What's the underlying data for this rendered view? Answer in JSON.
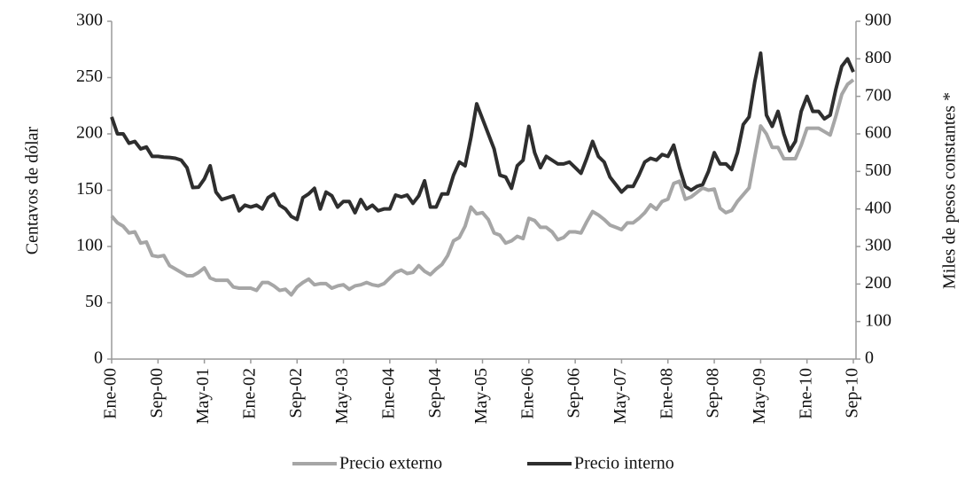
{
  "chart_data": {
    "type": "line",
    "y_label": "Centavos de dólar",
    "y2_label": "Miles de pesos constantes *",
    "categories": [
      "Ene-00",
      null,
      null,
      null,
      null,
      null,
      null,
      null,
      "Sep-00",
      null,
      null,
      null,
      null,
      null,
      null,
      null,
      "May-01",
      null,
      null,
      null,
      null,
      null,
      null,
      null,
      "Ene-02",
      null,
      null,
      null,
      null,
      null,
      null,
      null,
      "Sep-02",
      null,
      null,
      null,
      null,
      null,
      null,
      null,
      "May-03",
      null,
      null,
      null,
      null,
      null,
      null,
      null,
      "Ene-04",
      null,
      null,
      null,
      null,
      null,
      null,
      null,
      "Sep-04",
      null,
      null,
      null,
      null,
      null,
      null,
      null,
      "May-05",
      null,
      null,
      null,
      null,
      null,
      null,
      null,
      "Ene-06",
      null,
      null,
      null,
      null,
      null,
      null,
      null,
      "Sep-06",
      null,
      null,
      null,
      null,
      null,
      null,
      null,
      "May-07",
      null,
      null,
      null,
      null,
      null,
      null,
      null,
      "Ene-08",
      null,
      null,
      null,
      null,
      null,
      null,
      null,
      "Sep-08",
      null,
      null,
      null,
      null,
      null,
      null,
      null,
      "May-09",
      null,
      null,
      null,
      null,
      null,
      null,
      null,
      "Ene-10",
      null,
      null,
      null,
      null,
      null,
      null,
      null,
      "Sep-10"
    ],
    "series": [
      {
        "name": "Precio externo",
        "color": "#a6a6a6",
        "axis": "y",
        "values": [
          127,
          121,
          118,
          112,
          113,
          103,
          104,
          92,
          91,
          92,
          83,
          80,
          77,
          74,
          74,
          77,
          81,
          72,
          70,
          70,
          70,
          64,
          63,
          63,
          63,
          61,
          68,
          68,
          65,
          61,
          62,
          57,
          64,
          68,
          71,
          66,
          67,
          67,
          63,
          65,
          66,
          62,
          65,
          66,
          68,
          66,
          65,
          67,
          72,
          77,
          79,
          76,
          77,
          83,
          78,
          75,
          80,
          84,
          92,
          105,
          108,
          118,
          135,
          129,
          130,
          124,
          112,
          110,
          103,
          105,
          109,
          107,
          125,
          123,
          117,
          117,
          113,
          106,
          108,
          113,
          113,
          112,
          122,
          131,
          128,
          124,
          119,
          117,
          115,
          121,
          121,
          125,
          130,
          137,
          133,
          140,
          142,
          156,
          158,
          142,
          144,
          148,
          152,
          150,
          151,
          134,
          130,
          132,
          140,
          146,
          152,
          180,
          207,
          200,
          188,
          188,
          178,
          178,
          178,
          190,
          205,
          205,
          205,
          202,
          199,
          216,
          235,
          244,
          248
        ]
      },
      {
        "name": "Precio interno",
        "color": "#2e2e2e",
        "axis": "y2",
        "values": [
          645,
          600,
          600,
          575,
          580,
          560,
          565,
          540,
          540,
          538,
          537,
          535,
          530,
          510,
          457,
          458,
          480,
          515,
          445,
          425,
          430,
          435,
          395,
          410,
          405,
          410,
          400,
          430,
          440,
          410,
          400,
          380,
          372,
          430,
          440,
          455,
          400,
          445,
          435,
          405,
          420,
          420,
          390,
          425,
          400,
          410,
          395,
          400,
          400,
          437,
          432,
          437,
          415,
          435,
          475,
          405,
          405,
          440,
          440,
          490,
          525,
          515,
          590,
          680,
          640,
          600,
          560,
          490,
          485,
          455,
          515,
          530,
          620,
          550,
          510,
          540,
          530,
          520,
          520,
          525,
          510,
          495,
          535,
          580,
          540,
          525,
          485,
          465,
          445,
          460,
          460,
          490,
          525,
          535,
          530,
          545,
          540,
          570,
          510,
          460,
          450,
          460,
          465,
          500,
          550,
          520,
          520,
          505,
          550,
          625,
          645,
          740,
          815,
          650,
          620,
          660,
          600,
          555,
          580,
          660,
          700,
          660,
          660,
          640,
          650,
          720,
          780,
          800,
          765
        ]
      }
    ],
    "ylim": [
      0,
      300
    ],
    "yticks": [
      0,
      50,
      100,
      150,
      200,
      250,
      300
    ],
    "y2lim": [
      0,
      900
    ],
    "y2ticks": [
      0,
      100,
      200,
      300,
      400,
      500,
      600,
      700,
      800,
      900
    ],
    "grid": false,
    "legend": "bottom"
  }
}
